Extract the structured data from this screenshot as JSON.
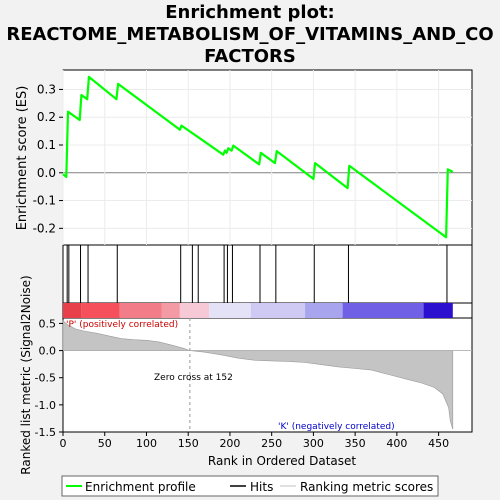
{
  "title": {
    "line1": "Enrichment plot:",
    "line2": "REACTOME_METABOLISM_OF_VITAMINS_AND_CO",
    "line3": "FACTORS"
  },
  "chart_data": {
    "type": "line",
    "title": "Enrichment plot: REACTOME_METABOLISM_OF_VITAMINS_AND_COFACTORS",
    "xlabel": "Rank in Ordered Dataset",
    "xlim": [
      0,
      490
    ],
    "x_ticks": [
      0,
      50,
      100,
      150,
      200,
      250,
      300,
      350,
      400,
      450
    ],
    "panels": {
      "enrichment": {
        "ylabel": "Enrichment score (ES)",
        "ylim": [
          -0.26,
          0.37
        ],
        "y_ticks": [
          -0.2,
          -0.1,
          0.0,
          0.1,
          0.2,
          0.3
        ],
        "y_tick_labels": [
          "-0.2",
          "-0.1",
          "0.0",
          "0.1",
          "0.2",
          "0.3"
        ],
        "series": [
          {
            "name": "Enrichment profile",
            "color": "#00ff00",
            "x": [
              0,
              4,
              6,
              20,
              22,
              29,
              31,
              64,
              66,
              140,
              142,
              192,
              194,
              196,
              198,
              202,
              204,
              235,
              237,
              254,
              256,
              300,
              302,
              341,
              343,
              459,
              461,
              467
            ],
            "y": [
              -0.005,
              -0.015,
              0.22,
              0.19,
              0.28,
              0.265,
              0.345,
              0.265,
              0.32,
              0.155,
              0.17,
              0.065,
              0.08,
              0.072,
              0.088,
              0.08,
              0.098,
              0.03,
              0.072,
              0.035,
              0.078,
              -0.022,
              0.035,
              -0.055,
              0.025,
              -0.232,
              0.012,
              0.003
            ]
          }
        ]
      },
      "hits": {
        "label": "Hits",
        "x": [
          5,
          7,
          21,
          30,
          65,
          141,
          155,
          162,
          193,
          197,
          203,
          236,
          255,
          301,
          342,
          460
        ]
      },
      "rank_bar": {
        "label_positive": "'P' (positively correlated)",
        "label_negative": "'K' (negatively correlated)",
        "segments": [
          {
            "x0": 0,
            "x1": 22,
            "color": "#e8404a"
          },
          {
            "x0": 22,
            "x1": 68,
            "color": "#f5505c"
          },
          {
            "x0": 68,
            "x1": 118,
            "color": "#f27c88"
          },
          {
            "x0": 118,
            "x1": 140,
            "color": "#f49aa4"
          },
          {
            "x0": 140,
            "x1": 175,
            "color": "#f7c8d6"
          },
          {
            "x0": 175,
            "x1": 225,
            "color": "#e4e2f6"
          },
          {
            "x0": 225,
            "x1": 290,
            "color": "#cfcaf4"
          },
          {
            "x0": 290,
            "x1": 335,
            "color": "#a8a4ee"
          },
          {
            "x0": 335,
            "x1": 432,
            "color": "#7060e6"
          },
          {
            "x0": 432,
            "x1": 467,
            "color": "#2c10d0"
          }
        ]
      },
      "ranked_metric": {
        "ylabel": "Ranked list metric (Signal2Noise)",
        "ylim": [
          -1.5,
          0.6
        ],
        "y_ticks": [
          -1.5,
          -1.0,
          -0.5,
          0.0,
          0.5
        ],
        "y_tick_labels": [
          "-1.5",
          "-1.0",
          "-0.5",
          "0.0",
          "0.5"
        ],
        "zero_cross_label": "Zero cross at 152",
        "zero_cross_x": 152,
        "x": [
          0,
          5,
          15,
          25,
          40,
          55,
          70,
          85,
          100,
          115,
          130,
          145,
          152,
          170,
          190,
          210,
          230,
          250,
          270,
          290,
          310,
          330,
          350,
          370,
          390,
          410,
          430,
          445,
          455,
          462,
          464,
          467
        ],
        "y": [
          0.55,
          0.48,
          0.4,
          0.36,
          0.32,
          0.27,
          0.22,
          0.2,
          0.19,
          0.16,
          0.1,
          0.04,
          0.0,
          -0.03,
          -0.08,
          -0.14,
          -0.18,
          -0.19,
          -0.2,
          -0.22,
          -0.26,
          -0.3,
          -0.33,
          -0.36,
          -0.44,
          -0.52,
          -0.6,
          -0.68,
          -0.8,
          -1.05,
          -1.3,
          -1.45
        ]
      }
    },
    "legend": {
      "placement": "bottom",
      "items": [
        {
          "label": "Enrichment profile",
          "color": "#00ff00"
        },
        {
          "label": "Hits",
          "color": "#000000"
        },
        {
          "label": "Ranking metric scores",
          "color": "#c0c0c0"
        }
      ]
    }
  }
}
